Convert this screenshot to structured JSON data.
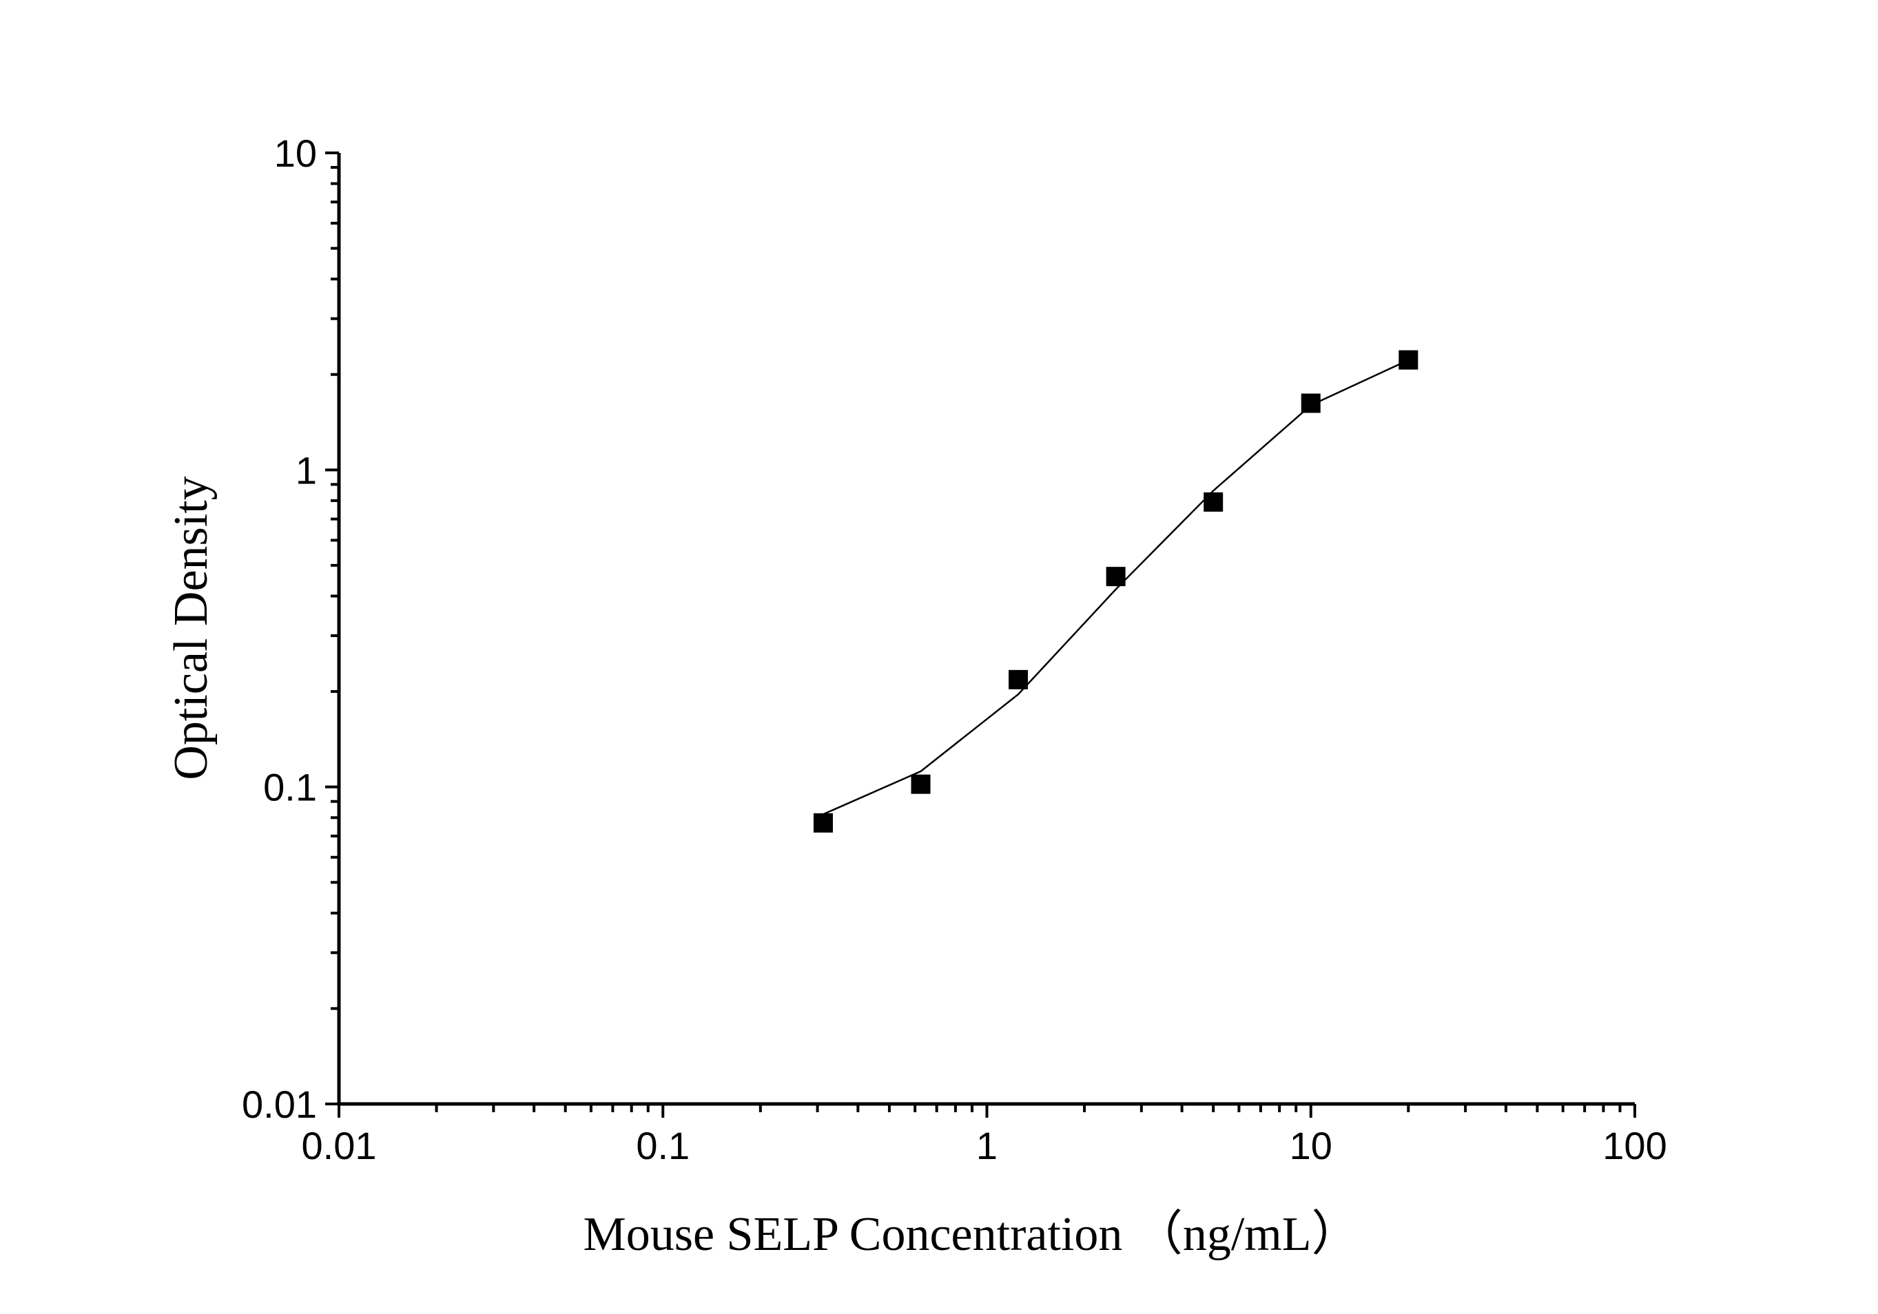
{
  "chart_data": {
    "type": "scatter",
    "title": "",
    "xlabel": "Mouse SELP Concentration （ng/mL）",
    "ylabel": "Optical Density",
    "x_scale": "log",
    "y_scale": "log",
    "xlim": [
      0.01,
      100
    ],
    "ylim": [
      0.01,
      10
    ],
    "x_ticks": [
      "0.01",
      "0.1",
      "1",
      "10",
      "100"
    ],
    "y_ticks": [
      "0.01",
      "0.1",
      "1",
      "10"
    ],
    "grid": false,
    "legend": "none",
    "marker_color": "#000000",
    "line_color": "#000000",
    "series": [
      {
        "x": [
          0.3125,
          0.625,
          1.25,
          2.5,
          5,
          10,
          20
        ],
        "y": [
          0.077,
          0.102,
          0.218,
          0.461,
          0.792,
          1.623,
          2.223
        ]
      }
    ],
    "fit_curve": {
      "x": [
        0.3125,
        0.625,
        1.25,
        2.5,
        5,
        10,
        20
      ],
      "y": [
        0.082,
        0.112,
        0.196,
        0.42,
        0.86,
        1.6,
        2.22
      ]
    }
  }
}
